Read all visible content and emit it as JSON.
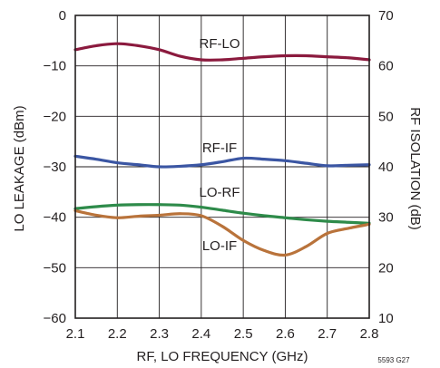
{
  "chart_data": {
    "type": "line",
    "xlabel": "RF, LO FREQUENCY (GHz)",
    "ylabel_left": "LO LEAKAGE (dBm)",
    "ylabel_right": "RF ISOLATION (dB)",
    "figure_id": "5593 G27",
    "xlim": [
      2.1,
      2.8
    ],
    "ylim_left": [
      -60,
      0
    ],
    "ylim_right": [
      10,
      70
    ],
    "x_ticks": [
      "2.1",
      "2.2",
      "2.3",
      "2.4",
      "2.5",
      "2.6",
      "2.7",
      "2.8"
    ],
    "y_ticks_left": [
      "0",
      "−10",
      "−20",
      "−30",
      "−40",
      "−50",
      "−60"
    ],
    "y_ticks_right": [
      "70",
      "60",
      "50",
      "40",
      "30",
      "20",
      "10"
    ],
    "grid": true,
    "series": [
      {
        "name": "RF-LO",
        "axis": "right",
        "color": "#8b1a3e",
        "x": [
          2.1,
          2.15,
          2.2,
          2.25,
          2.3,
          2.35,
          2.4,
          2.45,
          2.5,
          2.55,
          2.6,
          2.65,
          2.7,
          2.75,
          2.8
        ],
        "y": [
          63.2,
          64.0,
          64.4,
          64.0,
          63.2,
          61.9,
          61.2,
          61.2,
          61.5,
          61.8,
          62.0,
          62.0,
          61.8,
          61.6,
          61.2
        ]
      },
      {
        "name": "RF-IF",
        "axis": "right",
        "color": "#3b56a3",
        "x": [
          2.1,
          2.15,
          2.2,
          2.25,
          2.3,
          2.35,
          2.4,
          2.45,
          2.5,
          2.55,
          2.6,
          2.65,
          2.7,
          2.75,
          2.8
        ],
        "y": [
          42.1,
          41.5,
          40.8,
          40.4,
          40.0,
          40.1,
          40.4,
          41.0,
          41.7,
          41.5,
          41.2,
          40.7,
          40.2,
          40.3,
          40.4
        ]
      },
      {
        "name": "LO-RF",
        "axis": "left",
        "color": "#2e8b4a",
        "x": [
          2.1,
          2.15,
          2.2,
          2.25,
          2.3,
          2.35,
          2.4,
          2.45,
          2.5,
          2.55,
          2.6,
          2.65,
          2.7,
          2.75,
          2.8
        ],
        "y": [
          -38.3,
          -37.9,
          -37.6,
          -37.5,
          -37.5,
          -37.6,
          -38.0,
          -38.6,
          -39.2,
          -39.7,
          -40.1,
          -40.5,
          -40.8,
          -41.0,
          -41.2
        ]
      },
      {
        "name": "LO-IF",
        "axis": "left",
        "color": "#b9733b",
        "x": [
          2.1,
          2.15,
          2.2,
          2.25,
          2.3,
          2.35,
          2.4,
          2.45,
          2.5,
          2.55,
          2.6,
          2.65,
          2.7,
          2.75,
          2.8
        ],
        "y": [
          -38.7,
          -39.6,
          -40.1,
          -39.8,
          -39.6,
          -39.3,
          -39.7,
          -41.8,
          -44.6,
          -46.6,
          -47.5,
          -45.8,
          -43.2,
          -42.2,
          -41.4
        ]
      }
    ]
  }
}
